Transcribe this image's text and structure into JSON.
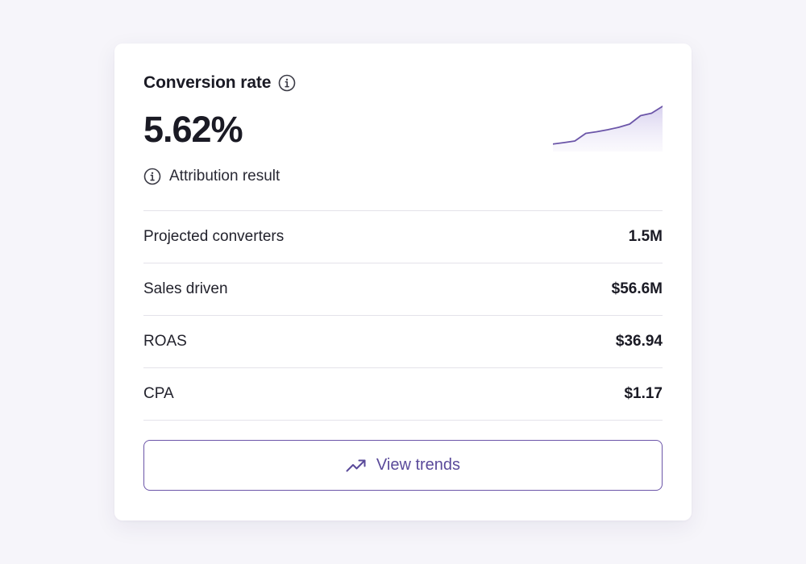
{
  "card": {
    "title": "Conversion rate",
    "title_icon": "info-icon",
    "value": "5.62%",
    "subtitle": "Attribution result",
    "subtitle_icon": "info-icon",
    "sparkline": {
      "type": "area",
      "values": [
        0.5,
        1.2,
        2.0,
        5.8,
        6.6,
        7.6,
        8.8,
        10.4,
        14.6,
        15.8,
        19.2
      ],
      "stroke_color": "#6b55a8",
      "fill_color": "#d9d3ee"
    }
  },
  "metrics": [
    {
      "label": "Projected converters",
      "value": "1.5M"
    },
    {
      "label": "Sales driven",
      "value": "$56.6M"
    },
    {
      "label": "ROAS",
      "value": "$36.94"
    },
    {
      "label": "CPA",
      "value": "$1.17"
    }
  ],
  "action": {
    "label": "View trends",
    "icon": "trending-up-icon",
    "accent_color": "#6b55a8"
  }
}
